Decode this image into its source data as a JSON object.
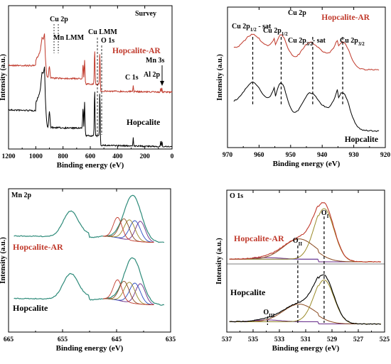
{
  "colors": {
    "red": "#c0392b",
    "black": "#000000",
    "teal": "#2e8b7a",
    "olive": "#9a8a28",
    "purple": "#6a2a86",
    "brown": "#8a4a20",
    "blue": "#2a4cc0",
    "gray": "#888888"
  },
  "chart_data": [
    {
      "type": "line",
      "panel": "survey",
      "title": "Survey",
      "xlabel": "Binding energy (eV)",
      "ylabel": "Intensity (a.u.)",
      "xlim": [
        1200,
        0
      ],
      "xticks": [
        1200,
        1000,
        800,
        600,
        400,
        200,
        0
      ],
      "series": [
        {
          "name": "Hopcalite-AR",
          "color": "#c0392b"
        },
        {
          "name": "Hopcalite",
          "color": "#000000"
        }
      ],
      "annotations": [
        "Cu 2p",
        "Mn LMM",
        "Cu LMM",
        "O 1s",
        "C 1s",
        "Al 2p",
        "Mn 3s"
      ]
    },
    {
      "type": "line",
      "panel": "cu2p",
      "title": "Cu 2p",
      "xlabel": "Binding energy (eV)",
      "ylabel": "Intensity (a.u.)",
      "xlim": [
        970,
        920
      ],
      "xticks": [
        970,
        960,
        950,
        940,
        930,
        920
      ],
      "series": [
        {
          "name": "Hopcalite-AR",
          "color": "#c0392b"
        },
        {
          "name": "Hopcalite",
          "color": "#000000"
        }
      ],
      "peaks": [
        {
          "label": "Cu 2p1/2 - sat",
          "x": 962
        },
        {
          "label": "Cu 2p1/2",
          "x": 953
        },
        {
          "label": "Cu 2p3/2 - sat",
          "x": 943
        },
        {
          "label": "Cu 2p3/2",
          "x": 933.5
        }
      ]
    },
    {
      "type": "line",
      "panel": "mn2p",
      "title": "Mn 2p",
      "xlabel": "Binding energy (eV)",
      "ylabel": "Intensity (a.u.)",
      "xlim": [
        665,
        635
      ],
      "xticks": [
        665,
        655,
        645,
        635
      ],
      "series": [
        {
          "name": "Hopcalite-AR",
          "color": "#c0392b"
        },
        {
          "name": "Hopcalite",
          "color": "#000000"
        }
      ],
      "peaks": [
        {
          "x": 653.5
        },
        {
          "x": 642
        }
      ]
    },
    {
      "type": "line",
      "panel": "o1s",
      "title": "O 1s",
      "xlabel": "Binding energy (eV)",
      "ylabel": "Intensity (a.u.)",
      "xlim": [
        537,
        525
      ],
      "xticks": [
        537,
        535,
        533,
        531,
        529,
        527,
        525
      ],
      "series": [
        {
          "name": "Hopcalite-AR",
          "color": "#c0392b"
        },
        {
          "name": "Hopcalite",
          "color": "#000000"
        }
      ],
      "peaks": [
        {
          "label": "OI",
          "x": 529.6
        },
        {
          "label": "OII",
          "x": 531.6
        },
        {
          "label": "OIII",
          "x": 533.9
        }
      ]
    }
  ]
}
